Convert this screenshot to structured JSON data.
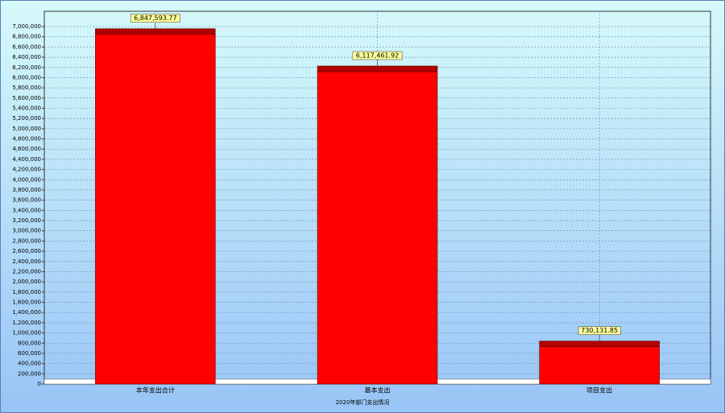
{
  "chart_data": {
    "type": "bar",
    "title": "2020年部门支出情况",
    "categories": [
      "本年支出合计",
      "基本支出",
      "项目支出"
    ],
    "values": [
      6847593.77,
      6117461.92,
      730131.85
    ],
    "value_labels": [
      "6,847,593.77",
      "6,117,461.92",
      "730,131.85"
    ],
    "color": "#ff0000",
    "ylim": [
      0,
      7300000
    ],
    "yticks": [
      0,
      {
        "value": 200000,
        "label": "200,000"
      },
      {
        "value": 400000,
        "label": "400,000"
      },
      {
        "value": 600000,
        "label": "600,000"
      },
      {
        "value": 800000,
        "label": "800,000"
      },
      {
        "value": 1000000,
        "label": "1,000,000"
      },
      {
        "value": 1200000,
        "label": "1,200,000"
      },
      {
        "value": 1400000,
        "label": "1,400,000"
      },
      {
        "value": 1600000,
        "label": "1,600,000"
      },
      {
        "value": 1800000,
        "label": "1,800,000"
      },
      {
        "value": 2000000,
        "label": "2,000,000"
      },
      {
        "value": 2200000,
        "label": "2,200,000"
      },
      {
        "value": 2400000,
        "label": "2,400,000"
      },
      {
        "value": 2600000,
        "label": "2,600,000"
      },
      {
        "value": 2800000,
        "label": "2,800,000"
      },
      {
        "value": 3000000,
        "label": "3,000,000"
      },
      {
        "value": 3200000,
        "label": "3,200,000"
      },
      {
        "value": 3400000,
        "label": "3,400,000"
      },
      {
        "value": 3600000,
        "label": "3,600,000"
      },
      {
        "value": 3800000,
        "label": "3,800,000"
      },
      {
        "value": 4000000,
        "label": "4,000,000"
      },
      {
        "value": 4200000,
        "label": "4,200,000"
      },
      {
        "value": 4400000,
        "label": "4,400,000"
      },
      {
        "value": 4600000,
        "label": "4,600,000"
      },
      {
        "value": 4800000,
        "label": "4,800,000"
      },
      {
        "value": 5000000,
        "label": "5,000,000"
      },
      {
        "value": 5200000,
        "label": "5,200,000"
      },
      {
        "value": 5400000,
        "label": "5,400,000"
      },
      {
        "value": 5600000,
        "label": "5,600,000"
      },
      {
        "value": 5800000,
        "label": "5,800,000"
      },
      {
        "value": 6000000,
        "label": "6,000,000"
      },
      {
        "value": 6200000,
        "label": "6,200,000"
      },
      {
        "value": 6400000,
        "label": "6,400,000"
      },
      {
        "value": 6600000,
        "label": "6,600,000"
      },
      {
        "value": 6800000,
        "label": "6,800,000"
      },
      {
        "value": 7000000,
        "label": "7,000,000"
      }
    ],
    "grid": true
  }
}
